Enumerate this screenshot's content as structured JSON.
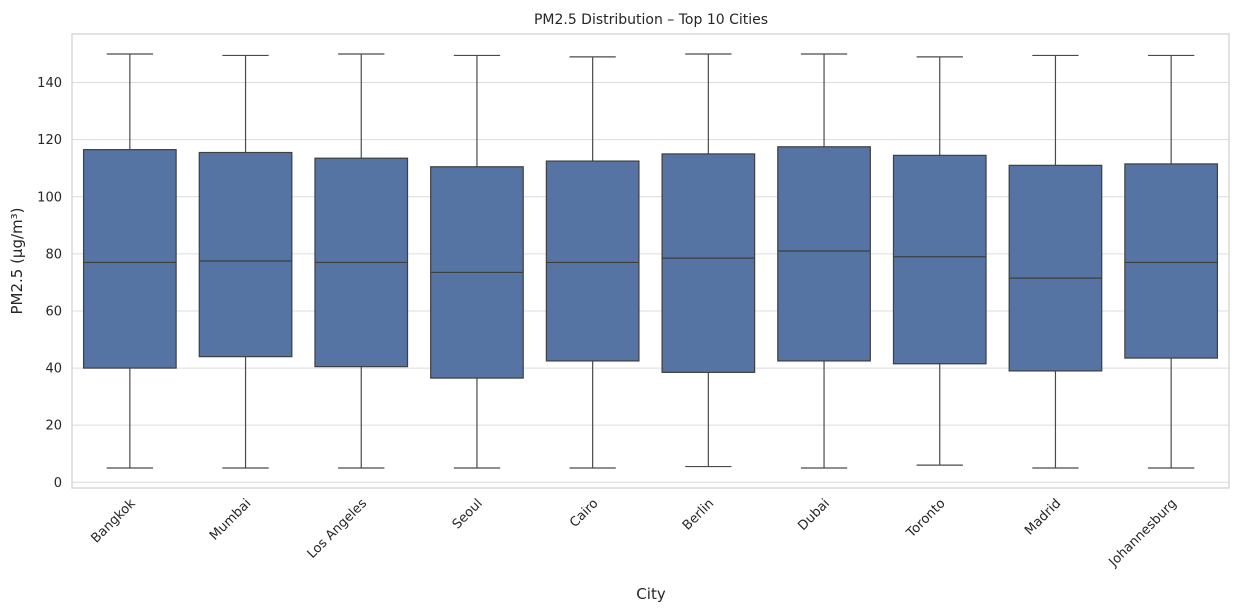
{
  "chart_data": {
    "type": "box",
    "title": "PM2.5 Distribution – Top 10 Cities",
    "xlabel": "City",
    "ylabel": "PM2.5 (µg/m³)",
    "ylim": [
      -2,
      157
    ],
    "yticks": [
      0,
      20,
      40,
      60,
      80,
      100,
      120,
      140
    ],
    "grid": true,
    "box_color": "#5573a3",
    "categories": [
      "Bangkok",
      "Mumbai",
      "Los Angeles",
      "Seoul",
      "Cairo",
      "Berlin",
      "Dubai",
      "Toronto",
      "Madrid",
      "Johannesburg"
    ],
    "boxes": [
      {
        "min": 5,
        "q1": 40,
        "median": 77,
        "q3": 116.5,
        "max": 150
      },
      {
        "min": 5,
        "q1": 44,
        "median": 77.5,
        "q3": 115.5,
        "max": 149.5
      },
      {
        "min": 5,
        "q1": 40.5,
        "median": 77,
        "q3": 113.5,
        "max": 150
      },
      {
        "min": 5,
        "q1": 36.5,
        "median": 73.5,
        "q3": 110.5,
        "max": 149.5
      },
      {
        "min": 5,
        "q1": 42.5,
        "median": 77,
        "q3": 112.5,
        "max": 149
      },
      {
        "min": 5.5,
        "q1": 38.5,
        "median": 78.5,
        "q3": 115,
        "max": 150
      },
      {
        "min": 5,
        "q1": 42.5,
        "median": 81,
        "q3": 117.5,
        "max": 150
      },
      {
        "min": 6,
        "q1": 41.5,
        "median": 79,
        "q3": 114.5,
        "max": 149
      },
      {
        "min": 5,
        "q1": 39,
        "median": 71.5,
        "q3": 111,
        "max": 149.5
      },
      {
        "min": 5,
        "q1": 43.5,
        "median": 77,
        "q3": 111.5,
        "max": 149.5
      }
    ]
  }
}
